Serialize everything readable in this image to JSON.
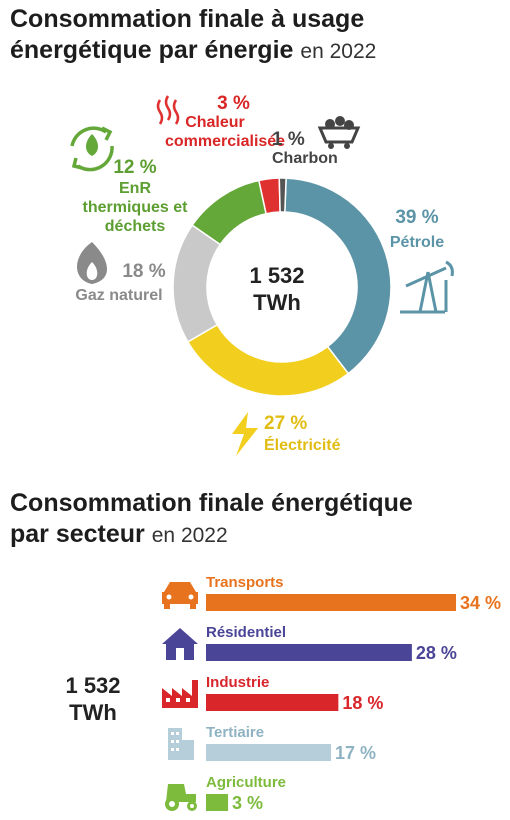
{
  "header": {
    "title1_main": "Consommation finale à usage",
    "title1_line2": "énergétique par énergie",
    "title1_sub": "en 2022",
    "title2_line1": "Consommation finale énergétique",
    "title2_line2": "par secteur",
    "title2_sub": "en 2022"
  },
  "chart_data": [
    {
      "type": "pie",
      "center_label": [
        "1 532",
        "TWh"
      ],
      "slices": [
        {
          "name": "Pétrole",
          "label": "39 %",
          "value": 39,
          "color": "#5b94a6",
          "icon": "oil-pump-icon"
        },
        {
          "name": "Électricité",
          "label": "27 %",
          "value": 27,
          "color": "#f2cf1e",
          "icon": "lightning-icon"
        },
        {
          "name": "Gaz naturel",
          "label": "18 %",
          "value": 18,
          "color": "#c9c9c9",
          "icon": "gas-flame-icon"
        },
        {
          "name": "EnR thermiques et déchets",
          "label": "12 %",
          "value": 12,
          "color": "#65a83a",
          "icon": "recycle-flame-icon"
        },
        {
          "name": "Chaleur commercialisée",
          "label": "3 %",
          "value": 3,
          "color": "#e03131",
          "icon": "heat-waves-icon"
        },
        {
          "name": "Charbon",
          "label": "1 %",
          "value": 1,
          "color": "#555555",
          "icon": "coal-cart-icon"
        }
      ]
    },
    {
      "type": "bar",
      "orientation": "horizontal",
      "total_label": [
        "1 532",
        "TWh"
      ],
      "categories": [
        "Transports",
        "Résidentiel",
        "Industrie",
        "Tertiaire",
        "Agriculture"
      ],
      "values": [
        34,
        28,
        18,
        17,
        3
      ],
      "labels": [
        "34 %",
        "28 %",
        "18 %",
        "17 %",
        "3 %"
      ],
      "colors": [
        "#e8731e",
        "#4b4597",
        "#d9262b",
        "#b5ced9",
        "#7dbb3d"
      ],
      "icons": [
        "car-icon",
        "house-icon",
        "factory-icon",
        "office-building-icon",
        "tractor-icon"
      ]
    }
  ]
}
